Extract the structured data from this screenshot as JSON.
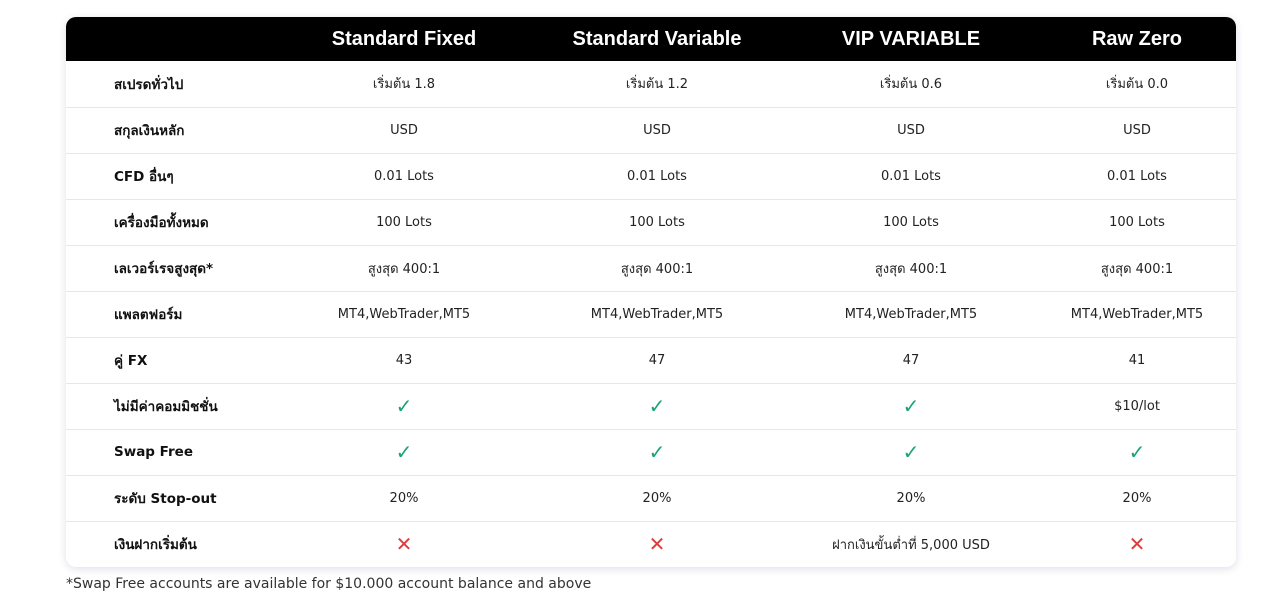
{
  "columns": [
    "",
    "Standard Fixed",
    "Standard Variable",
    "VIP VARIABLE",
    "Raw Zero"
  ],
  "rows": [
    {
      "label": "สเปรดทั่วไป",
      "cells": [
        "เริ่มต้น 1.8",
        "เริ่มต้น 1.2",
        "เริ่มต้น 0.6",
        "เริ่มต้น 0.0"
      ]
    },
    {
      "label": "สกุลเงินหลัก",
      "cells": [
        "USD",
        "USD",
        "USD",
        "USD"
      ]
    },
    {
      "label": "CFD อื่นๆ",
      "cells": [
        "0.01 Lots",
        "0.01 Lots",
        "0.01 Lots",
        "0.01 Lots"
      ]
    },
    {
      "label": "เครื่องมือทั้งหมด",
      "cells": [
        "100 Lots",
        "100 Lots",
        "100 Lots",
        "100 Lots"
      ]
    },
    {
      "label": "เลเวอร์เรจสูงสุด*",
      "cells": [
        "สูงสุด 400:1",
        "สูงสุด 400:1",
        "สูงสุด 400:1",
        "สูงสุด 400:1"
      ]
    },
    {
      "label": "แพลตฟอร์ม",
      "cells": [
        "MT4,WebTrader,MT5",
        "MT4,WebTrader,MT5",
        "MT4,WebTrader,MT5",
        "MT4,WebTrader,MT5"
      ]
    },
    {
      "label": "คู่ FX",
      "cells": [
        "43",
        "47",
        "47",
        "41"
      ]
    },
    {
      "label": "ไม่มีค่าคอมมิชชั่น",
      "cells": [
        "check-icon",
        "check-icon",
        "check-icon",
        "$10/lot"
      ]
    },
    {
      "label": "Swap Free",
      "cells": [
        "check-icon",
        "check-icon",
        "check-icon",
        "check-icon"
      ]
    },
    {
      "label": "ระดับ Stop-out",
      "cells": [
        "20%",
        "20%",
        "20%",
        "20%"
      ]
    },
    {
      "label": "เงินฝากเริ่มต้น",
      "cells": [
        "cross-icon",
        "cross-icon",
        "ฝากเงินขั้นต่ำที่ 5,000 USD",
        "cross-icon"
      ]
    }
  ],
  "footnote": "*Swap Free accounts are available for $10.000 account balance and above",
  "colors": {
    "header_bg": "#000000",
    "check": "#1aa37a",
    "cross": "#dc3c3c"
  }
}
